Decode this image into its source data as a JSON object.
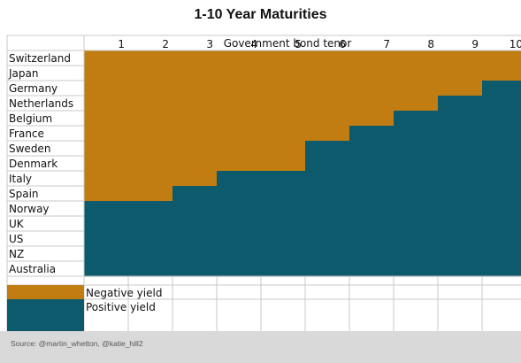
{
  "title": "1-10 Year Maturities",
  "source": "Source: @martin_whetton, @katie_hill2",
  "colors": {
    "negative": "#c17d11",
    "positive": "#0c5a6c",
    "grid": "#c8c8c8"
  },
  "chart_data": {
    "type": "heatmap",
    "title": "1-10 Year Maturities",
    "xlabel": "Government bond tenor",
    "x": [
      "1",
      "2",
      "3",
      "4",
      "5",
      "6",
      "7",
      "8",
      "9",
      "10"
    ],
    "countries": [
      "Switzerland",
      "Japan",
      "Germany",
      "Netherlands",
      "Belgium",
      "France",
      "Sweden",
      "Denmark",
      "Italy",
      "Spain",
      "Norway",
      "UK",
      "US",
      "NZ",
      "Australia"
    ],
    "negative_up_to_tenor": [
      10,
      10,
      9,
      8,
      7,
      6,
      5,
      5,
      3,
      2,
      0,
      0,
      0,
      0,
      0
    ],
    "legend": [
      {
        "label": "Negative yield",
        "color": "#c17d11"
      },
      {
        "label": "Positive yield",
        "color": "#0c5a6c"
      }
    ]
  }
}
